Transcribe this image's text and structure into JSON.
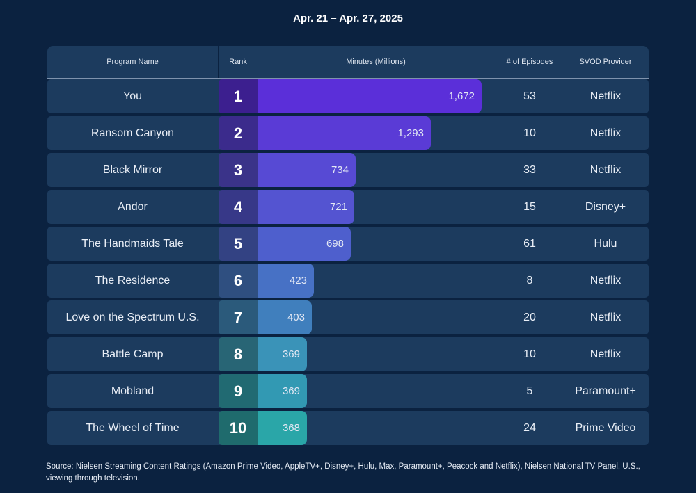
{
  "date_range": "Apr. 21 – Apr. 27, 2025",
  "headers": {
    "program_name": "Program Name",
    "rank": "Rank",
    "minutes": "Minutes (Millions)",
    "episodes": "# of Episodes",
    "provider": "SVOD Provider"
  },
  "chart_data": {
    "type": "bar",
    "orientation": "horizontal",
    "categories": [
      "You",
      "Ransom Canyon",
      "Black Mirror",
      "Andor",
      "The Handmaids Tale",
      "The Residence",
      "Love on the Spectrum U.S.",
      "Battle Camp",
      "Mobland",
      "The Wheel of Time"
    ],
    "values": [
      1672,
      1293,
      734,
      721,
      698,
      423,
      403,
      369,
      369,
      368
    ],
    "value_labels": [
      "1,672",
      "1,293",
      "734",
      "721",
      "698",
      "423",
      "403",
      "369",
      "369",
      "368"
    ],
    "xlim": [
      0,
      1700
    ]
  },
  "rows": [
    {
      "rank": "1",
      "name": "You",
      "episodes": "53",
      "provider": "Netflix"
    },
    {
      "rank": "2",
      "name": "Ransom Canyon",
      "episodes": "10",
      "provider": "Netflix"
    },
    {
      "rank": "3",
      "name": "Black Mirror",
      "episodes": "33",
      "provider": "Netflix"
    },
    {
      "rank": "4",
      "name": "Andor",
      "episodes": "15",
      "provider": "Disney+"
    },
    {
      "rank": "5",
      "name": "The Handmaids Tale",
      "episodes": "61",
      "provider": "Hulu"
    },
    {
      "rank": "6",
      "name": "The Residence",
      "episodes": "8",
      "provider": "Netflix"
    },
    {
      "rank": "7",
      "name": "Love on the Spectrum U.S.",
      "episodes": "20",
      "provider": "Netflix"
    },
    {
      "rank": "8",
      "name": "Battle Camp",
      "episodes": "10",
      "provider": "Netflix"
    },
    {
      "rank": "9",
      "name": "Mobland",
      "episodes": "5",
      "provider": "Paramount+"
    },
    {
      "rank": "10",
      "name": "The Wheel of Time",
      "episodes": "24",
      "provider": "Prime Video"
    }
  ],
  "colors": {
    "bars": [
      "#5b2fd9",
      "#5a3bd6",
      "#574ad4",
      "#5454d1",
      "#4e5fcd",
      "#4771c5",
      "#407fbd",
      "#3a93b8",
      "#3299b3",
      "#2aa6a8"
    ],
    "rank_cells": [
      "#3c1f8f",
      "#3b2b8c",
      "#3a3389",
      "#373888",
      "#334283",
      "#2f4f80",
      "#2b5a7b",
      "#286575",
      "#216a72",
      "#1f6b6d"
    ]
  },
  "source": "Source: Nielsen Streaming Content Ratings (Amazon Prime Video, AppleTV+, Disney+, Hulu, Max, Paramount+, Peacock and Netflix), Nielsen National TV Panel, U.S., viewing through television."
}
